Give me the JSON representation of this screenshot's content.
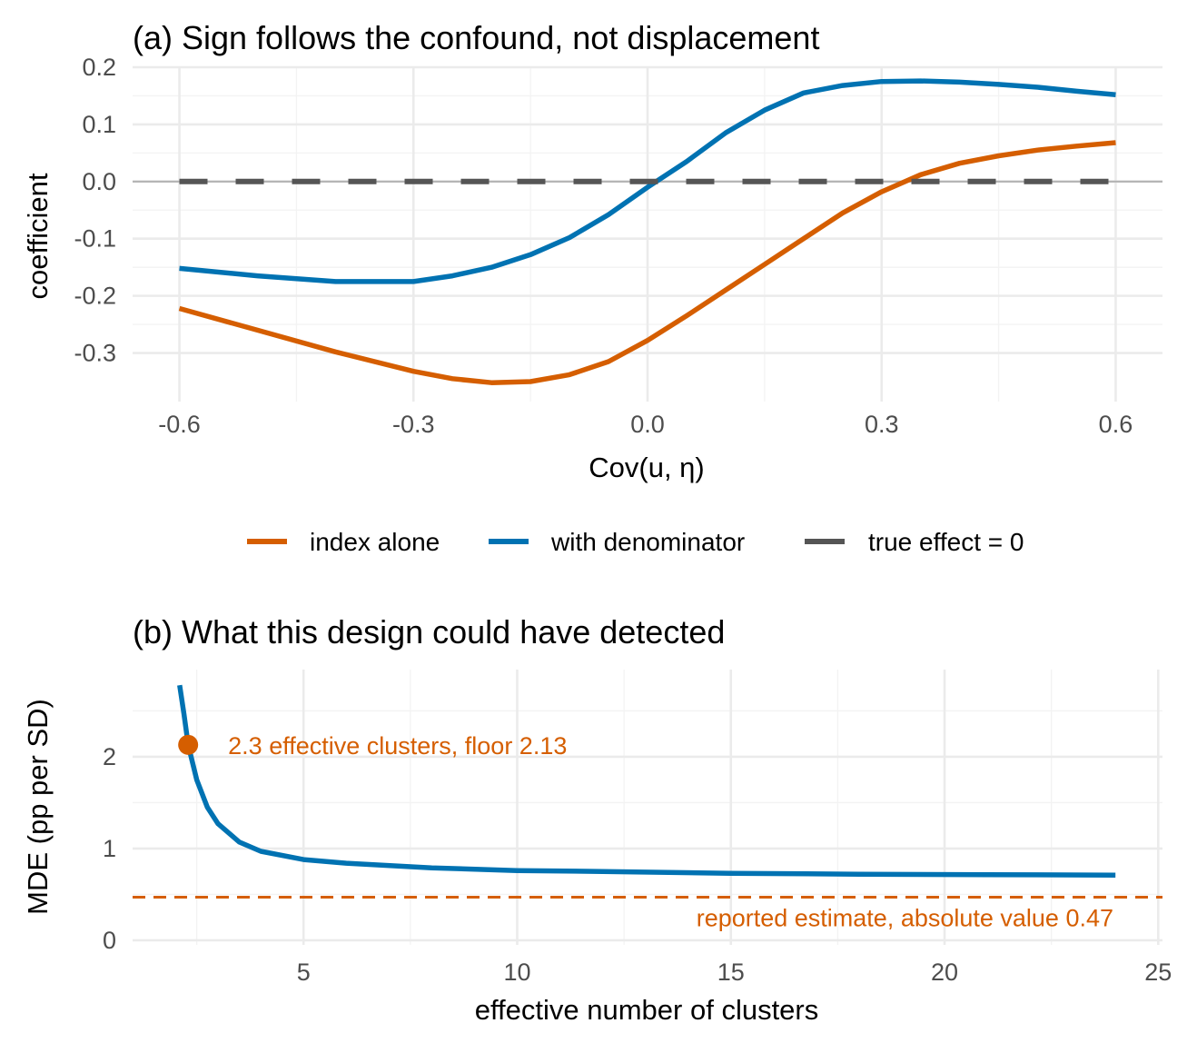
{
  "colors": {
    "orange": "#D55E00",
    "blue": "#0072B2",
    "gray": "#555555",
    "zero": "#b3b3b3"
  },
  "chart_data": [
    {
      "type": "line",
      "title": "(a) Sign follows the confound, not displacement",
      "xlabel": "Cov(u, η)",
      "ylabel": "coefficient",
      "xlim": [
        -0.66,
        0.66
      ],
      "ylim": [
        -0.385,
        0.2
      ],
      "xticks": [
        -0.6,
        -0.3,
        0.0,
        0.3,
        0.6
      ],
      "xtick_labels": [
        "-0.6",
        "-0.3",
        "0.0",
        "0.3",
        "0.6"
      ],
      "yticks": [
        0.2,
        0.1,
        0.0,
        -0.1,
        -0.2,
        -0.3
      ],
      "ytick_labels": [
        "0.2",
        "0.1",
        "0.0",
        "-0.1",
        "-0.2",
        "-0.3"
      ],
      "grid": true,
      "legend": {
        "position": "bottom",
        "entries": [
          "index alone",
          "with denominator",
          "true effect = 0"
        ]
      },
      "series": [
        {
          "name": "index alone",
          "color": "#D55E00",
          "x": [
            -0.6,
            -0.5,
            -0.4,
            -0.3,
            -0.25,
            -0.2,
            -0.15,
            -0.1,
            -0.05,
            0.0,
            0.05,
            0.1,
            0.15,
            0.2,
            0.25,
            0.3,
            0.35,
            0.4,
            0.45,
            0.5,
            0.55,
            0.6
          ],
          "y": [
            -0.222,
            -0.26,
            -0.298,
            -0.332,
            -0.345,
            -0.352,
            -0.35,
            -0.338,
            -0.315,
            -0.278,
            -0.235,
            -0.19,
            -0.145,
            -0.1,
            -0.055,
            -0.018,
            0.012,
            0.032,
            0.045,
            0.055,
            0.062,
            0.068
          ]
        },
        {
          "name": "with denominator",
          "color": "#0072B2",
          "x": [
            -0.6,
            -0.5,
            -0.4,
            -0.3,
            -0.25,
            -0.2,
            -0.15,
            -0.1,
            -0.05,
            0.0,
            0.05,
            0.1,
            0.15,
            0.2,
            0.25,
            0.3,
            0.35,
            0.4,
            0.45,
            0.5,
            0.55,
            0.6
          ],
          "y": [
            -0.152,
            -0.165,
            -0.175,
            -0.175,
            -0.165,
            -0.15,
            -0.128,
            -0.098,
            -0.058,
            -0.01,
            0.035,
            0.085,
            0.125,
            0.155,
            0.168,
            0.175,
            0.176,
            0.174,
            0.17,
            0.165,
            0.158,
            0.152
          ]
        },
        {
          "name": "true effect = 0",
          "color": "#555555",
          "style": "dashed",
          "x": [
            -0.6,
            0.6
          ],
          "y": [
            0,
            0
          ]
        }
      ]
    },
    {
      "type": "line",
      "title": "(b) What this design could have detected",
      "xlabel": "effective number of clusters",
      "ylabel": "MDE (pp per SD)",
      "xlim": [
        1.0,
        25.1
      ],
      "ylim": [
        -0.05,
        2.95
      ],
      "xticks": [
        5,
        10,
        15,
        20,
        25
      ],
      "xtick_labels": [
        "5",
        "10",
        "15",
        "20",
        "25"
      ],
      "yticks": [
        0,
        1,
        2
      ],
      "ytick_labels": [
        "0",
        "1",
        "2"
      ],
      "grid": true,
      "series": [
        {
          "name": "MDE",
          "color": "#0072B2",
          "x": [
            2.1,
            2.2,
            2.3,
            2.5,
            2.75,
            3.0,
            3.5,
            4.0,
            5.0,
            6.0,
            8.0,
            10.0,
            12.0,
            15.0,
            18.0,
            21.0,
            24.0
          ],
          "y": [
            2.78,
            2.47,
            2.13,
            1.75,
            1.45,
            1.27,
            1.07,
            0.97,
            0.88,
            0.84,
            0.79,
            0.76,
            0.75,
            0.73,
            0.72,
            0.715,
            0.71
          ]
        }
      ],
      "reference_line": {
        "y": 0.47,
        "color": "#D55E00",
        "style": "dashed",
        "label": "reported estimate, absolute value 0.47"
      },
      "highlight_point": {
        "x": 2.3,
        "y": 2.13,
        "color": "#D55E00",
        "label": "2.3 effective clusters, floor 2.13"
      }
    }
  ]
}
